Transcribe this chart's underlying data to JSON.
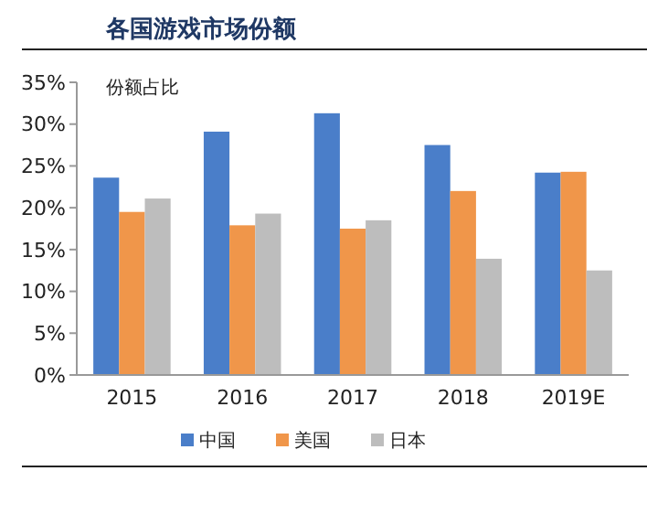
{
  "chart_data": {
    "type": "bar",
    "title": "各国游戏市场份额",
    "ylabel": "份额占比",
    "categories": [
      "2015",
      "2016",
      "2017",
      "2018",
      "2019E"
    ],
    "series": [
      {
        "name": "中国",
        "color": "#4a7ec9",
        "values": [
          23.6,
          29.1,
          31.3,
          27.5,
          24.2
        ]
      },
      {
        "name": "美国",
        "color": "#f0964a",
        "values": [
          19.5,
          17.9,
          17.5,
          22.0,
          24.3
        ]
      },
      {
        "name": "日本",
        "color": "#bdbdbd",
        "values": [
          21.1,
          19.3,
          18.5,
          13.9,
          12.5
        ]
      }
    ],
    "ylim": [
      0,
      35
    ],
    "yticks": [
      {
        "value": 0,
        "label": "0%"
      },
      {
        "value": 5,
        "label": "5%"
      },
      {
        "value": 10,
        "label": "10%"
      },
      {
        "value": 15,
        "label": "15%"
      },
      {
        "value": 20,
        "label": "20%"
      },
      {
        "value": 25,
        "label": "25%"
      },
      {
        "value": 30,
        "label": "30%"
      },
      {
        "value": 35,
        "label": "35%"
      }
    ],
    "grid": false,
    "legend": "bottom"
  }
}
